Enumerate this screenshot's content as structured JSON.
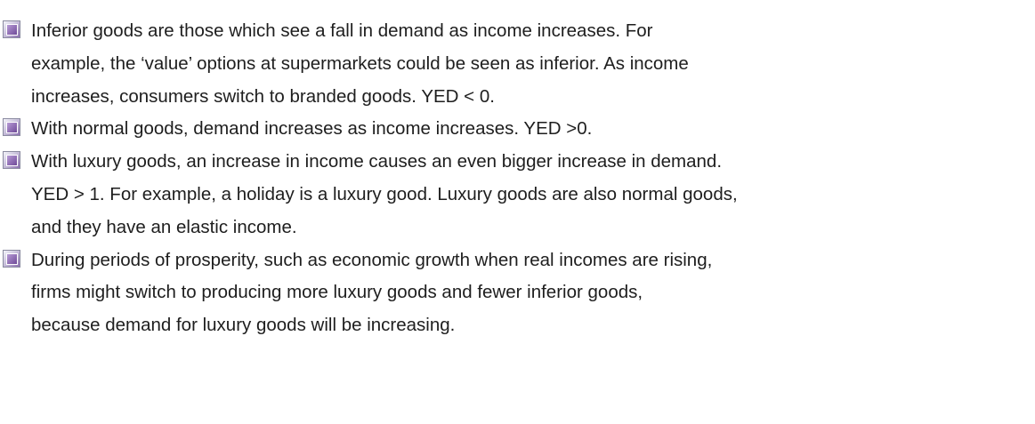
{
  "items": [
    {
      "lines": [
        "Inferior goods are those which see a fall in demand as income increases. For",
        "example, the ‘value’ options at supermarkets could be seen as inferior. As income",
        "increases, consumers switch to branded goods. YED < 0."
      ]
    },
    {
      "lines": [
        "With normal goods, demand increases as income increases. YED >0."
      ]
    },
    {
      "lines": [
        "With luxury goods, an increase in income causes an even bigger increase in demand.",
        "YED > 1. For example, a holiday is a luxury good. Luxury goods are also normal goods,",
        "and they have an elastic income."
      ]
    },
    {
      "lines": [
        "During periods of prosperity, such as economic growth when real incomes are rising,",
        "firms might switch to producing more luxury goods and fewer inferior goods,",
        "because demand for luxury goods will be increasing."
      ]
    }
  ]
}
